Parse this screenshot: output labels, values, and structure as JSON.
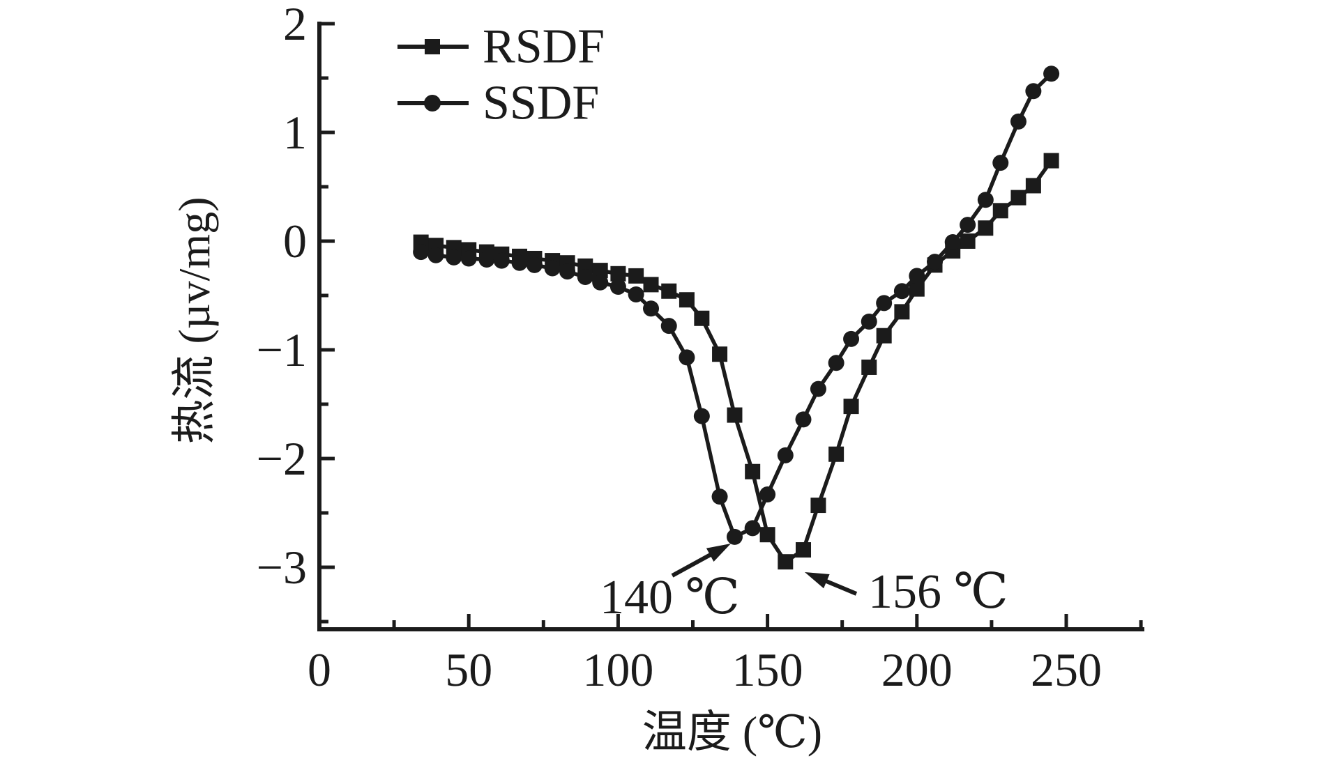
{
  "figure": {
    "background": "#ffffff",
    "ink_color": "#1b1b1b"
  },
  "chart_data": {
    "type": "line",
    "title": "",
    "xlabel": "温度 (℃)",
    "ylabel": "热流 (µv/mg)",
    "xlim": [
      0,
      275
    ],
    "ylim": [
      -3.57,
      2.0
    ],
    "grid": false,
    "legend_position": "top-left-inside",
    "x_ticks": [
      0,
      50,
      100,
      150,
      200,
      250
    ],
    "x_minor_ticks": [
      25,
      75,
      125,
      175,
      225,
      275
    ],
    "y_ticks": [
      2,
      1,
      0,
      -1,
      -2,
      -3
    ],
    "y_minor_ticks": [
      1.5,
      0.5,
      -0.5,
      -1.5,
      -2.5,
      -3.5
    ],
    "x": [
      34,
      39,
      45,
      50,
      56,
      61,
      67,
      72,
      78,
      83,
      89,
      94,
      100,
      106,
      111,
      117,
      123,
      128,
      134,
      139,
      145,
      150,
      156,
      162,
      167,
      173,
      178,
      184,
      189,
      195,
      200,
      206,
      212,
      217,
      223,
      228,
      234,
      239,
      245
    ],
    "series": [
      {
        "name": "RSDF",
        "marker": "square",
        "values": [
          -0.01,
          -0.04,
          -0.06,
          -0.08,
          -0.1,
          -0.12,
          -0.14,
          -0.16,
          -0.18,
          -0.2,
          -0.23,
          -0.27,
          -0.3,
          -0.32,
          -0.4,
          -0.46,
          -0.54,
          -0.71,
          -1.04,
          -1.6,
          -2.12,
          -2.7,
          -2.95,
          -2.84,
          -2.43,
          -1.96,
          -1.52,
          -1.16,
          -0.87,
          -0.65,
          -0.44,
          -0.22,
          -0.09,
          0.0,
          0.12,
          0.28,
          0.4,
          0.51,
          0.74
        ]
      },
      {
        "name": "SSDF",
        "marker": "circle",
        "values": [
          -0.1,
          -0.13,
          -0.15,
          -0.16,
          -0.17,
          -0.18,
          -0.2,
          -0.22,
          -0.25,
          -0.28,
          -0.33,
          -0.38,
          -0.42,
          -0.49,
          -0.62,
          -0.78,
          -1.07,
          -1.61,
          -2.35,
          -2.72,
          -2.64,
          -2.33,
          -1.97,
          -1.64,
          -1.36,
          -1.12,
          -0.9,
          -0.74,
          -0.57,
          -0.46,
          -0.32,
          -0.19,
          -0.01,
          0.15,
          0.38,
          0.72,
          1.1,
          1.38,
          1.54
        ]
      }
    ],
    "annotations": [
      {
        "text": "140 ℃",
        "points_to": {
          "x": 140,
          "y": -2.72
        },
        "series": "SSDF"
      },
      {
        "text": "156 ℃",
        "points_to": {
          "x": 156,
          "y": -2.95
        },
        "series": "RSDF"
      }
    ]
  }
}
